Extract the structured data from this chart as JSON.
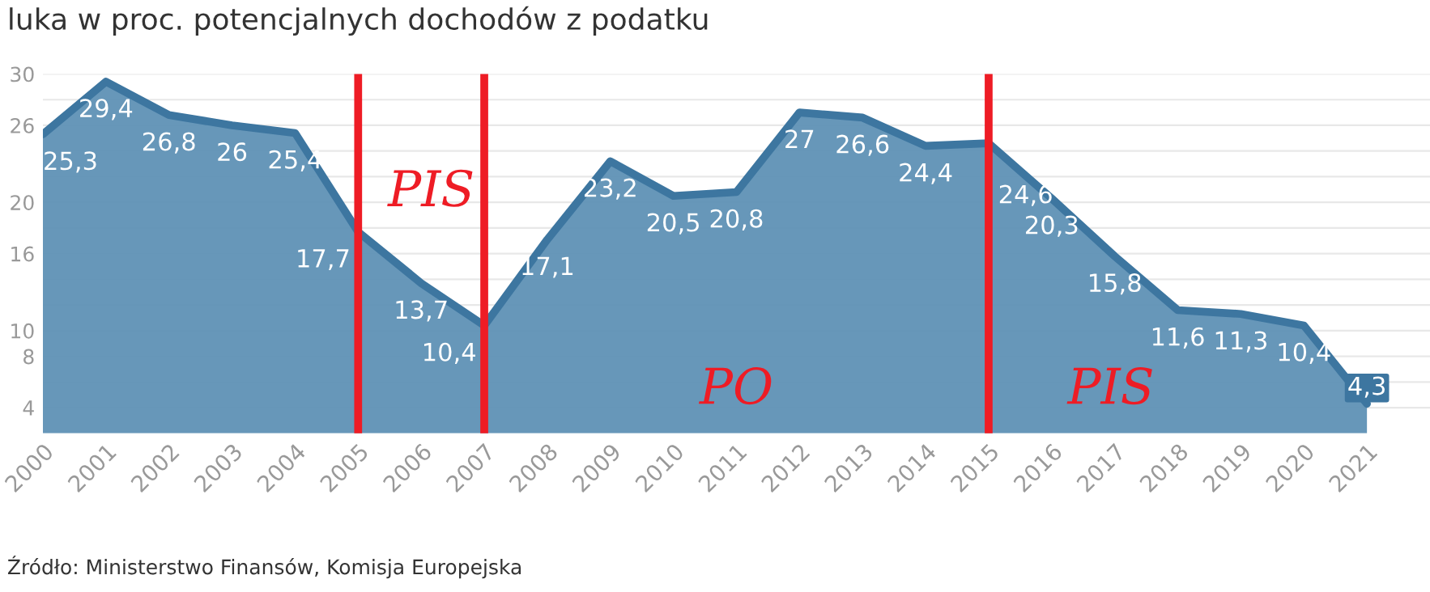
{
  "chart_data": {
    "type": "area",
    "title": "luka w proc. potencjalnych dochodów z podatku",
    "x": [
      2000,
      2001,
      2002,
      2003,
      2004,
      2005,
      2006,
      2007,
      2008,
      2009,
      2010,
      2011,
      2012,
      2013,
      2014,
      2015,
      2016,
      2017,
      2018,
      2019,
      2020,
      2021
    ],
    "series": [
      {
        "color": "#5f91b5",
        "values": [
          25.3,
          29.4,
          26.8,
          26,
          25.4,
          17.7,
          13.7,
          10.4,
          17.1,
          23.2,
          20.5,
          20.8,
          27,
          26.6,
          24.4,
          24.6,
          20.3,
          15.8,
          11.6,
          11.3,
          10.4,
          4.3
        ]
      }
    ],
    "value_labels": [
      "25,3",
      "29,4",
      "26,8",
      "26",
      "25,4",
      "17,7",
      "13,7",
      "10,4",
      "17,1",
      "23,2",
      "20,5",
      "20,8",
      "27",
      "26,6",
      "24,4",
      "24,6",
      "20,3",
      "15,8",
      "11,6",
      "11,3",
      "10,4",
      "4,3"
    ],
    "xlim": [
      2000,
      2022
    ],
    "xticks": [
      2000,
      2001,
      2002,
      2003,
      2004,
      2005,
      2006,
      2007,
      2008,
      2009,
      2010,
      2011,
      2012,
      2013,
      2014,
      2015,
      2016,
      2017,
      2018,
      2019,
      2020,
      2021
    ],
    "ylim": [
      2,
      30
    ],
    "yticks": [
      4,
      {
        "value": 6,
        "label": null
      },
      8,
      10,
      {
        "value": 12,
        "label": null
      },
      {
        "value": 14,
        "label": null
      },
      16,
      {
        "value": 18,
        "label": null
      },
      20,
      {
        "value": 22,
        "label": null
      },
      {
        "value": 24,
        "label": null
      },
      26,
      {
        "value": 28,
        "label": null
      },
      30
    ],
    "grid": "y",
    "ref_lines": [
      {
        "axis": "x",
        "value": 2005,
        "color": "#ee1c25",
        "line_style": "solid"
      },
      {
        "axis": "x",
        "value": 2007,
        "color": "#ee1c25",
        "line_style": "solid"
      },
      {
        "axis": "x",
        "value": 2015,
        "color": "#ee1c25",
        "line_style": "solid"
      }
    ],
    "annotations": [
      "PIS",
      "PO",
      "PIS",
      "Źródło: Ministerstwo Finansów, Komisja Europejska"
    ]
  }
}
